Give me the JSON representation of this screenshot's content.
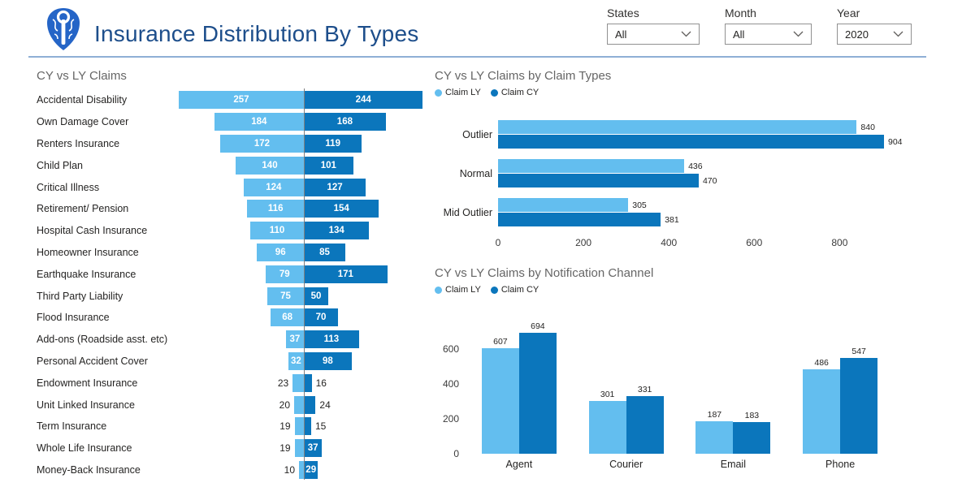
{
  "header": {
    "title": "Insurance Distribution By Types",
    "filters": [
      {
        "label": "States",
        "value": "All"
      },
      {
        "label": "Month",
        "value": "All"
      },
      {
        "label": "Year",
        "value": "2020"
      }
    ]
  },
  "colors": {
    "claim_ly": "#63BEEF",
    "claim_cy": "#0B76BC",
    "title_blue": "#1D4E8B",
    "logo_blue": "#2565C7",
    "chart_title": "#666666",
    "center_line": "#808080",
    "divider": "#8FAFD6"
  },
  "chart_data": [
    {
      "id": "tornado",
      "type": "bar",
      "orientation": "horizontal-tornado",
      "title": "CY vs LY Claims",
      "categories": [
        "Accidental Disability",
        "Own Damage Cover",
        "Renters Insurance",
        "Child Plan",
        "Critical Illness",
        "Retirement/ Pension",
        "Hospital Cash Insurance",
        "Homeowner Insurance",
        "Earthquake Insurance",
        "Third Party Liability",
        "Flood Insurance",
        "Add-ons (Roadside asst. etc)",
        "Personal Accident Cover",
        "Endowment Insurance",
        "Unit Linked Insurance",
        "Term Insurance",
        "Whole Life Insurance",
        "Money-Back Insurance"
      ],
      "series": [
        {
          "name": "Claim LY",
          "values": [
            257,
            184,
            172,
            140,
            124,
            116,
            110,
            96,
            79,
            75,
            68,
            37,
            32,
            23,
            20,
            19,
            19,
            10
          ]
        },
        {
          "name": "Claim CY",
          "values": [
            244,
            168,
            119,
            101,
            127,
            154,
            134,
            85,
            171,
            50,
            70,
            113,
            98,
            16,
            24,
            15,
            37,
            29
          ]
        }
      ],
      "xlim": [
        0,
        260
      ],
      "grid": false,
      "legend_position": "none"
    },
    {
      "id": "claim-types",
      "type": "bar",
      "orientation": "horizontal-grouped",
      "title": "CY vs LY Claims by Claim Types",
      "categories": [
        "Outlier",
        "Normal",
        "Mid Outlier"
      ],
      "series": [
        {
          "name": "Claim LY",
          "values": [
            840,
            436,
            305
          ]
        },
        {
          "name": "Claim CY",
          "values": [
            904,
            470,
            381
          ]
        }
      ],
      "x_ticks": [
        0,
        200,
        400,
        600,
        800
      ],
      "xlim": [
        0,
        1060
      ],
      "grid": false,
      "legend_position": "top-left"
    },
    {
      "id": "notification-channel",
      "type": "bar",
      "orientation": "vertical-grouped",
      "title": "CY vs LY Claims by Notification Channel",
      "categories": [
        "Agent",
        "Courier",
        "Email",
        "Phone"
      ],
      "series": [
        {
          "name": "Claim LY",
          "values": [
            607,
            301,
            187,
            486
          ]
        },
        {
          "name": "Claim CY",
          "values": [
            694,
            331,
            183,
            547
          ]
        }
      ],
      "y_ticks": [
        0,
        200,
        400,
        600
      ],
      "ylim": [
        0,
        800
      ],
      "grid": false,
      "legend_position": "top-left"
    }
  ]
}
